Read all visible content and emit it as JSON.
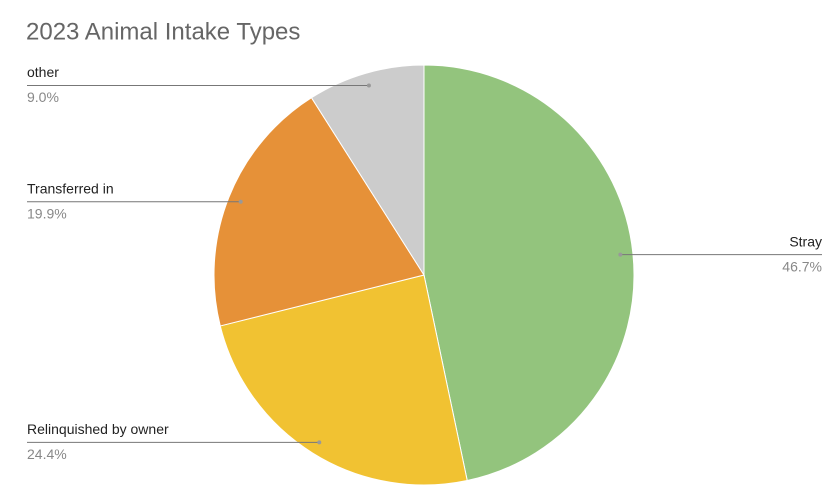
{
  "chart_data": {
    "type": "pie",
    "title": "2023 Animal Intake Types",
    "categories": [
      "Stray",
      "Relinquished by owner",
      "Transferred in",
      "other"
    ],
    "values": [
      46.7,
      24.4,
      19.9,
      9.0
    ],
    "value_labels": [
      "46.7%",
      "24.4%",
      "19.9%",
      "9.0%"
    ],
    "colors": [
      "#93c47d",
      "#f1c232",
      "#e69138",
      "#cccccc"
    ]
  }
}
